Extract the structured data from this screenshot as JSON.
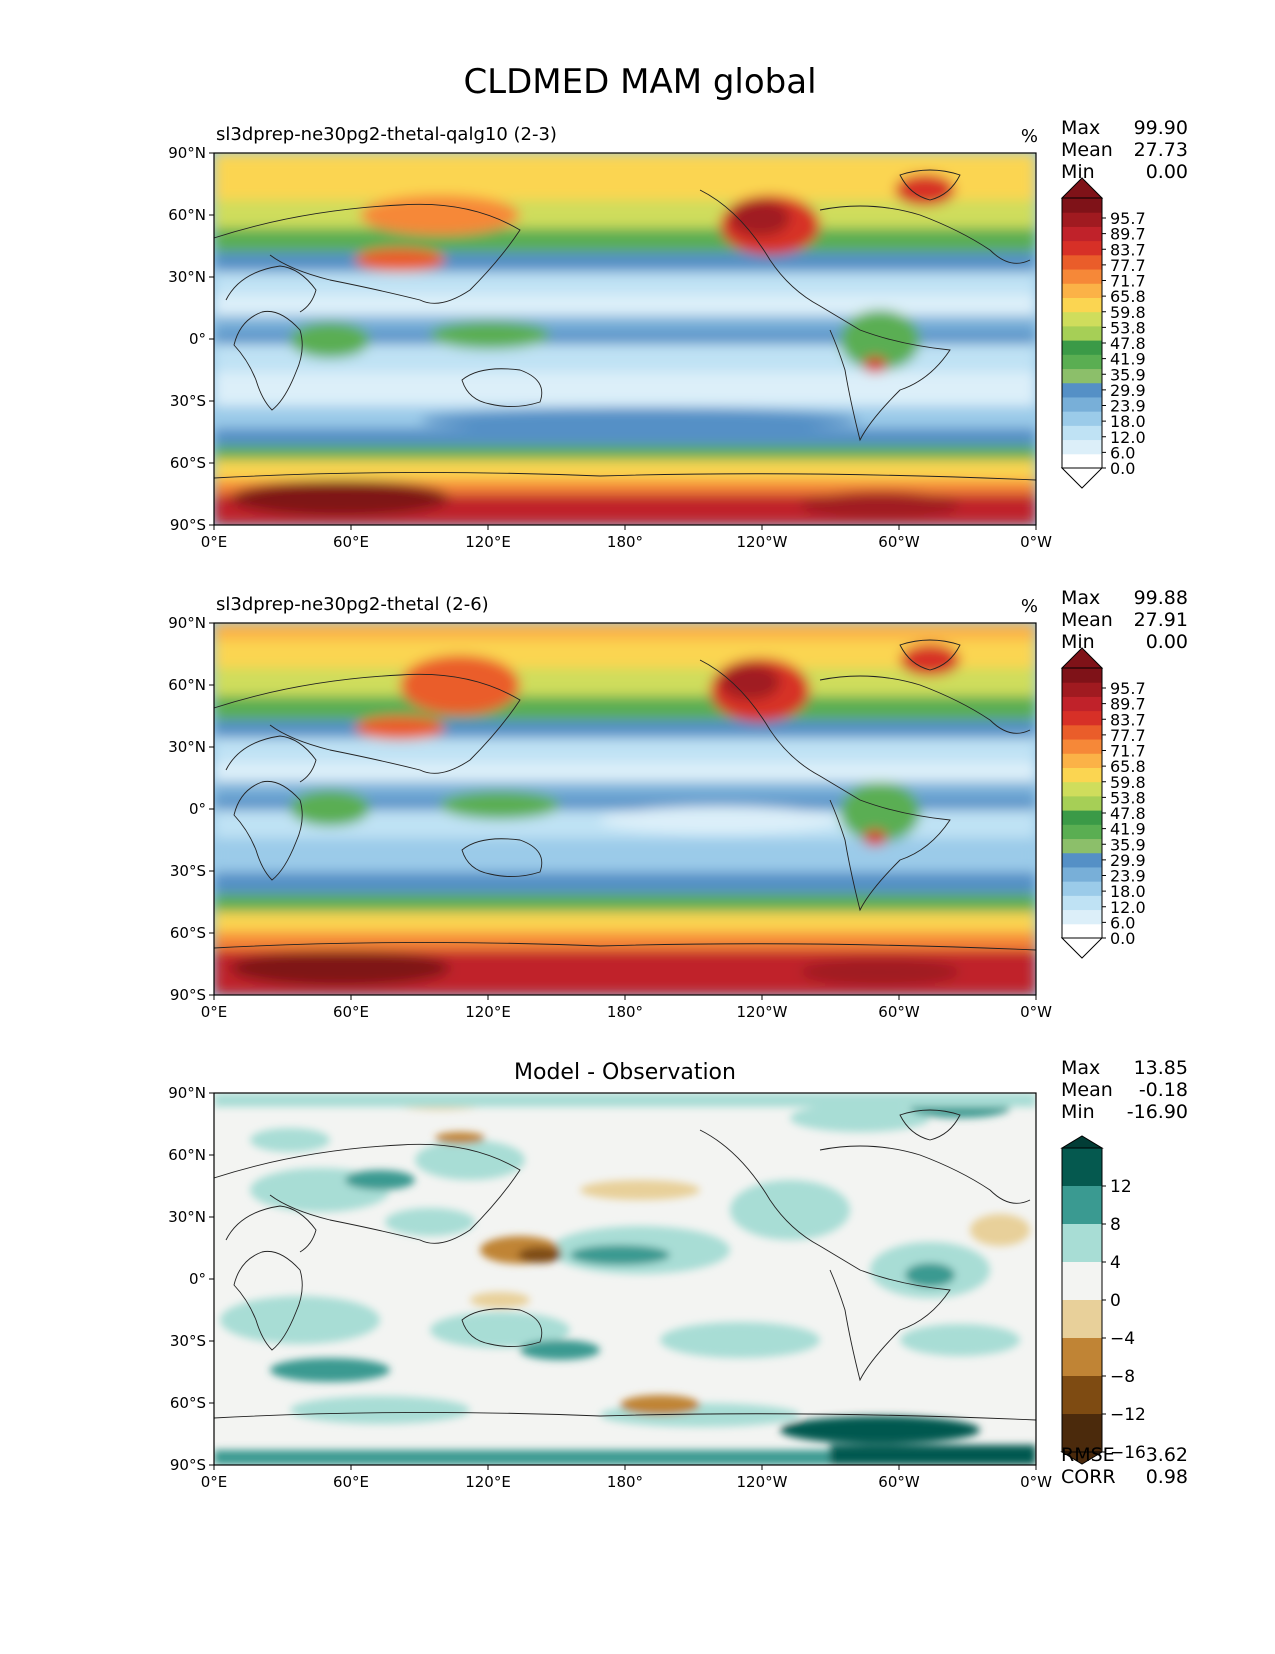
{
  "title": "CLDMED MAM global",
  "lon_ticks": [
    "0°E",
    "60°E",
    "120°E",
    "180°",
    "120°W",
    "60°W",
    "0°W"
  ],
  "lat_ticks": [
    "90°N",
    "60°N",
    "30°N",
    "0°",
    "30°S",
    "60°S",
    "90°S"
  ],
  "colors": {
    "cloud_levels": [
      "#ffffff",
      "#dceff9",
      "#bfe2f4",
      "#9bcbe9",
      "#78afd8",
      "#5590c6",
      "#8cbf6a",
      "#5aae52",
      "#3b9a47",
      "#a6cf56",
      "#cfdd5c",
      "#fbd551",
      "#fbb247",
      "#f68838",
      "#ea5d2a",
      "#d73027",
      "#c0222a",
      "#a01a20",
      "#7f1218"
    ],
    "diff_levels": [
      "#4b2a0c",
      "#7e4b12",
      "#c08435",
      "#e8d09a",
      "#f3f4f2",
      "#a8ddd5",
      "#3a9a91",
      "#05594f",
      "#023d36"
    ]
  },
  "chart_data": [
    {
      "type": "heatmap",
      "title": "sl3dprep-ne30pg2-thetal-qalg10 (2-3)",
      "units": "%",
      "stats": [
        {
          "label": "Max",
          "value": "99.90"
        },
        {
          "label": "Mean",
          "value": "27.73"
        },
        {
          "label": "Min",
          "value": "0.00"
        }
      ],
      "colorbar_ticks": [
        "95.7",
        "89.7",
        "83.7",
        "77.7",
        "71.7",
        "65.8",
        "59.8",
        "53.8",
        "47.8",
        "41.9",
        "35.9",
        "29.9",
        "23.9",
        "18.0",
        "12.0",
        "6.0",
        "0.0"
      ],
      "xlim": [
        0,
        360
      ],
      "ylim": [
        -90,
        90
      ]
    },
    {
      "type": "heatmap",
      "title": "sl3dprep-ne30pg2-thetal (2-6)",
      "units": "%",
      "stats": [
        {
          "label": "Max",
          "value": "99.88"
        },
        {
          "label": "Mean",
          "value": "27.91"
        },
        {
          "label": "Min",
          "value": "0.00"
        }
      ],
      "colorbar_ticks": [
        "95.7",
        "89.7",
        "83.7",
        "77.7",
        "71.7",
        "65.8",
        "59.8",
        "53.8",
        "47.8",
        "41.9",
        "35.9",
        "29.9",
        "23.9",
        "18.0",
        "12.0",
        "6.0",
        "0.0"
      ],
      "xlim": [
        0,
        360
      ],
      "ylim": [
        -90,
        90
      ]
    },
    {
      "type": "heatmap",
      "title": "Model - Observation",
      "stats": [
        {
          "label": "Max",
          "value": "13.85"
        },
        {
          "label": "Mean",
          "value": "-0.18"
        },
        {
          "label": "Min",
          "value": "-16.90"
        }
      ],
      "colorbar_ticks": [
        "12",
        "8",
        "4",
        "0",
        "−4",
        "−8",
        "−12",
        "−16"
      ],
      "metrics": [
        {
          "label": "RMSE",
          "value": "3.62"
        },
        {
          "label": "CORR",
          "value": "0.98"
        }
      ],
      "xlim": [
        0,
        360
      ],
      "ylim": [
        -90,
        90
      ]
    }
  ]
}
